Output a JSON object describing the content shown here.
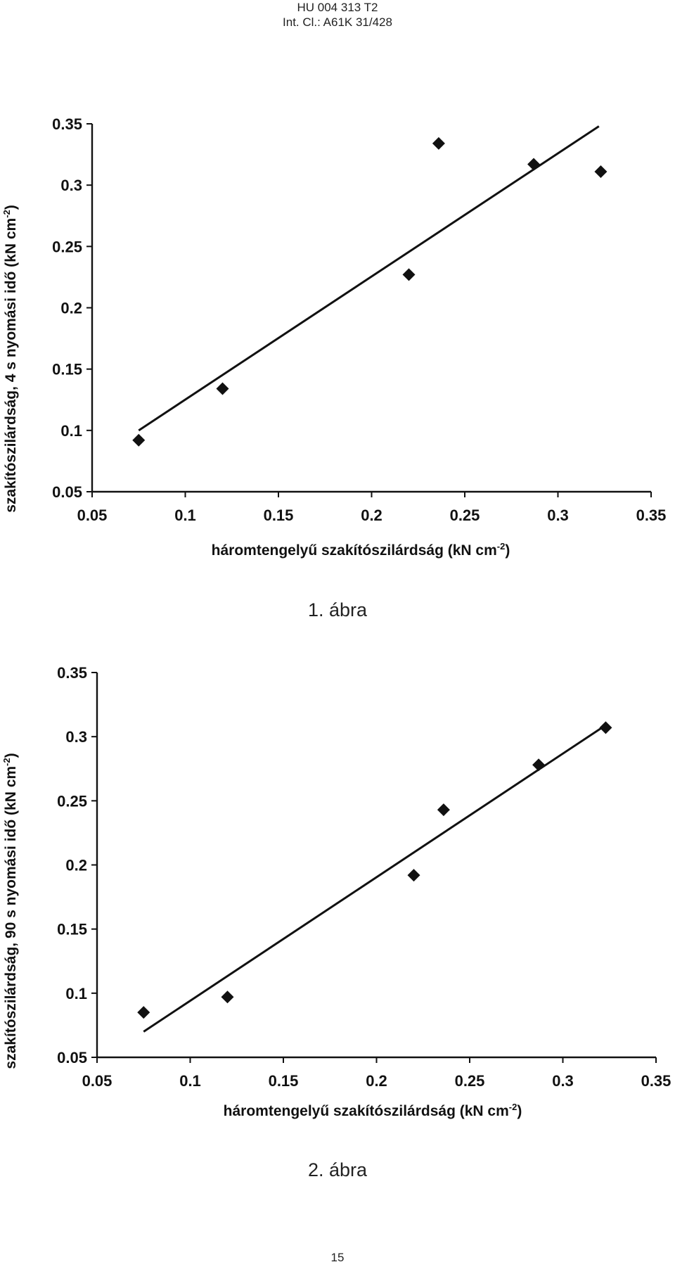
{
  "header": {
    "doc_number": "HU 004 313 T2",
    "classification": "Int. Cl.: A61K 31/428"
  },
  "figures": [
    {
      "caption": "1. ábra",
      "y_axis_label": {
        "main": "szakítószilárdság, 4 s nyomási idő (kN cm",
        "sup": "-2",
        "end": ")"
      },
      "x_axis_label": {
        "main": "háromtengelyű szakítószilárdság (kN cm",
        "sup": "-2",
        "end": ")"
      }
    },
    {
      "caption": "2. ábra",
      "y_axis_label": {
        "main": "szakítószilárdság, 90 s nyomási idő (kN cm",
        "sup": "-2",
        "end": ")"
      },
      "x_axis_label": {
        "main": "háromtengelyű szakítószilárdság (kN cm",
        "sup": "-2",
        "end": ")"
      }
    }
  ],
  "page_number": "15",
  "colors": {
    "ink": "#111111",
    "background": "#ffffff"
  },
  "chart_data": [
    {
      "type": "scatter",
      "title": "",
      "xlabel": "háromtengelyű szakítószilárdság (kN cm-2)",
      "ylabel": "szakítószilárdság, 4 s nyomási idő (kN cm-2)",
      "xlim": [
        0.05,
        0.35
      ],
      "ylim": [
        0.05,
        0.35
      ],
      "x_ticks": [
        0.05,
        0.1,
        0.15,
        0.2,
        0.25,
        0.3,
        0.35
      ],
      "y_ticks": [
        0.05,
        0.1,
        0.15,
        0.2,
        0.25,
        0.3,
        0.35
      ],
      "x_tick_labels": [
        "0.05",
        "0.1",
        "0.15",
        "0.2",
        "0.25",
        "0.3",
        "0.35"
      ],
      "y_tick_labels": [
        "0.05",
        "0.1",
        "0.15",
        "0.2",
        "0.25",
        "0.3",
        "0.35"
      ],
      "grid": false,
      "legend": "none",
      "marker": "diamond",
      "points": [
        {
          "x": 0.075,
          "y": 0.092
        },
        {
          "x": 0.12,
          "y": 0.134
        },
        {
          "x": 0.22,
          "y": 0.227
        },
        {
          "x": 0.236,
          "y": 0.334
        },
        {
          "x": 0.287,
          "y": 0.317
        },
        {
          "x": 0.323,
          "y": 0.311
        }
      ],
      "trendline": {
        "x": [
          0.075,
          0.322
        ],
        "y": [
          0.1,
          0.348
        ]
      }
    },
    {
      "type": "scatter",
      "title": "",
      "xlabel": "háromtengelyű szakítószilárdság (kN cm-2)",
      "ylabel": "szakítószilárdság, 90 s nyomási idő (kN cm-2)",
      "xlim": [
        0.05,
        0.35
      ],
      "ylim": [
        0.05,
        0.35
      ],
      "x_ticks": [
        0.05,
        0.1,
        0.15,
        0.2,
        0.25,
        0.3,
        0.35
      ],
      "y_ticks": [
        0.05,
        0.1,
        0.15,
        0.2,
        0.25,
        0.3,
        0.35
      ],
      "x_tick_labels": [
        "0.05",
        "0.1",
        "0.15",
        "0.2",
        "0.25",
        "0.3",
        "0.35"
      ],
      "y_tick_labels": [
        "0.05",
        "0.1",
        "0.15",
        "0.2",
        "0.25",
        "0.3",
        "0.35"
      ],
      "grid": false,
      "legend": "none",
      "marker": "diamond",
      "points": [
        {
          "x": 0.075,
          "y": 0.085
        },
        {
          "x": 0.12,
          "y": 0.097
        },
        {
          "x": 0.22,
          "y": 0.192
        },
        {
          "x": 0.236,
          "y": 0.243
        },
        {
          "x": 0.287,
          "y": 0.278
        },
        {
          "x": 0.323,
          "y": 0.307
        }
      ],
      "trendline": {
        "x": [
          0.075,
          0.322
        ],
        "y": [
          0.07,
          0.308
        ]
      }
    }
  ]
}
